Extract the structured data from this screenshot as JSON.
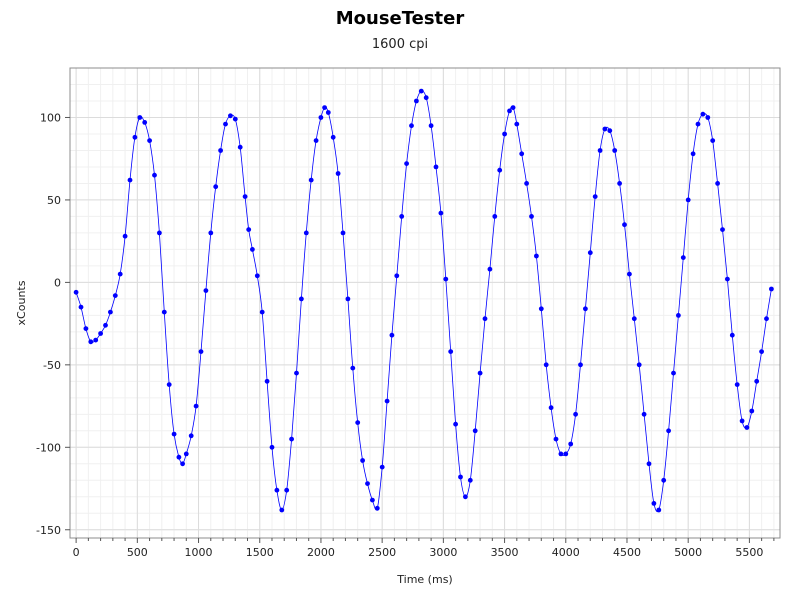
{
  "chart_data": {
    "type": "line",
    "title": "MouseTester",
    "subtitle": "1600 cpi",
    "xlabel": "Time (ms)",
    "ylabel": "xCounts",
    "xlim": [
      -50,
      5750
    ],
    "ylim": [
      -155,
      130
    ],
    "xticks": [
      0,
      500,
      1000,
      1500,
      2000,
      2500,
      3000,
      3500,
      4000,
      4500,
      5000,
      5500
    ],
    "yticks": [
      -150,
      -100,
      -50,
      0,
      50,
      100
    ],
    "grid": true,
    "series": [
      {
        "color": "#0000ff",
        "markers": true,
        "points": [
          [
            0,
            -6
          ],
          [
            40,
            -15
          ],
          [
            80,
            -28
          ],
          [
            120,
            -36
          ],
          [
            160,
            -35
          ],
          [
            200,
            -31
          ],
          [
            240,
            -26
          ],
          [
            280,
            -18
          ],
          [
            320,
            -8
          ],
          [
            360,
            5
          ],
          [
            400,
            28
          ],
          [
            440,
            62
          ],
          [
            480,
            88
          ],
          [
            520,
            100
          ],
          [
            560,
            97
          ],
          [
            600,
            86
          ],
          [
            640,
            65
          ],
          [
            680,
            30
          ],
          [
            720,
            -18
          ],
          [
            760,
            -62
          ],
          [
            800,
            -92
          ],
          [
            840,
            -106
          ],
          [
            870,
            -110
          ],
          [
            900,
            -104
          ],
          [
            940,
            -93
          ],
          [
            980,
            -75
          ],
          [
            1020,
            -42
          ],
          [
            1060,
            -5
          ],
          [
            1100,
            30
          ],
          [
            1140,
            58
          ],
          [
            1180,
            80
          ],
          [
            1220,
            96
          ],
          [
            1260,
            101
          ],
          [
            1300,
            99
          ],
          [
            1340,
            82
          ],
          [
            1380,
            52
          ],
          [
            1410,
            32
          ],
          [
            1440,
            20
          ],
          [
            1480,
            4
          ],
          [
            1520,
            -18
          ],
          [
            1560,
            -60
          ],
          [
            1600,
            -100
          ],
          [
            1640,
            -126
          ],
          [
            1680,
            -138
          ],
          [
            1720,
            -126
          ],
          [
            1760,
            -95
          ],
          [
            1800,
            -55
          ],
          [
            1840,
            -10
          ],
          [
            1880,
            30
          ],
          [
            1920,
            62
          ],
          [
            1960,
            86
          ],
          [
            2000,
            100
          ],
          [
            2030,
            106
          ],
          [
            2060,
            103
          ],
          [
            2100,
            88
          ],
          [
            2140,
            66
          ],
          [
            2180,
            30
          ],
          [
            2220,
            -10
          ],
          [
            2260,
            -52
          ],
          [
            2300,
            -85
          ],
          [
            2340,
            -108
          ],
          [
            2380,
            -122
          ],
          [
            2420,
            -132
          ],
          [
            2460,
            -137
          ],
          [
            2500,
            -112
          ],
          [
            2540,
            -72
          ],
          [
            2580,
            -32
          ],
          [
            2620,
            4
          ],
          [
            2660,
            40
          ],
          [
            2700,
            72
          ],
          [
            2740,
            95
          ],
          [
            2780,
            110
          ],
          [
            2820,
            116
          ],
          [
            2860,
            112
          ],
          [
            2900,
            95
          ],
          [
            2940,
            70
          ],
          [
            2980,
            42
          ],
          [
            3020,
            2
          ],
          [
            3060,
            -42
          ],
          [
            3100,
            -86
          ],
          [
            3140,
            -118
          ],
          [
            3180,
            -130
          ],
          [
            3220,
            -120
          ],
          [
            3260,
            -90
          ],
          [
            3300,
            -55
          ],
          [
            3340,
            -22
          ],
          [
            3380,
            8
          ],
          [
            3420,
            40
          ],
          [
            3460,
            68
          ],
          [
            3500,
            90
          ],
          [
            3540,
            104
          ],
          [
            3570,
            106
          ],
          [
            3600,
            96
          ],
          [
            3640,
            78
          ],
          [
            3680,
            60
          ],
          [
            3720,
            40
          ],
          [
            3760,
            16
          ],
          [
            3800,
            -16
          ],
          [
            3840,
            -50
          ],
          [
            3880,
            -76
          ],
          [
            3920,
            -95
          ],
          [
            3960,
            -104
          ],
          [
            4000,
            -104
          ],
          [
            4040,
            -98
          ],
          [
            4080,
            -80
          ],
          [
            4120,
            -50
          ],
          [
            4160,
            -16
          ],
          [
            4200,
            18
          ],
          [
            4240,
            52
          ],
          [
            4280,
            80
          ],
          [
            4320,
            93
          ],
          [
            4360,
            92
          ],
          [
            4400,
            80
          ],
          [
            4440,
            60
          ],
          [
            4480,
            35
          ],
          [
            4520,
            5
          ],
          [
            4560,
            -22
          ],
          [
            4600,
            -50
          ],
          [
            4640,
            -80
          ],
          [
            4680,
            -110
          ],
          [
            4720,
            -134
          ],
          [
            4760,
            -138
          ],
          [
            4800,
            -120
          ],
          [
            4840,
            -90
          ],
          [
            4880,
            -55
          ],
          [
            4920,
            -20
          ],
          [
            4960,
            15
          ],
          [
            5000,
            50
          ],
          [
            5040,
            78
          ],
          [
            5080,
            96
          ],
          [
            5120,
            102
          ],
          [
            5160,
            100
          ],
          [
            5200,
            86
          ],
          [
            5240,
            60
          ],
          [
            5280,
            32
          ],
          [
            5320,
            2
          ],
          [
            5360,
            -32
          ],
          [
            5400,
            -62
          ],
          [
            5440,
            -84
          ],
          [
            5480,
            -88
          ],
          [
            5520,
            -78
          ],
          [
            5560,
            -60
          ],
          [
            5600,
            -42
          ],
          [
            5640,
            -22
          ],
          [
            5680,
            -4
          ]
        ]
      }
    ]
  }
}
